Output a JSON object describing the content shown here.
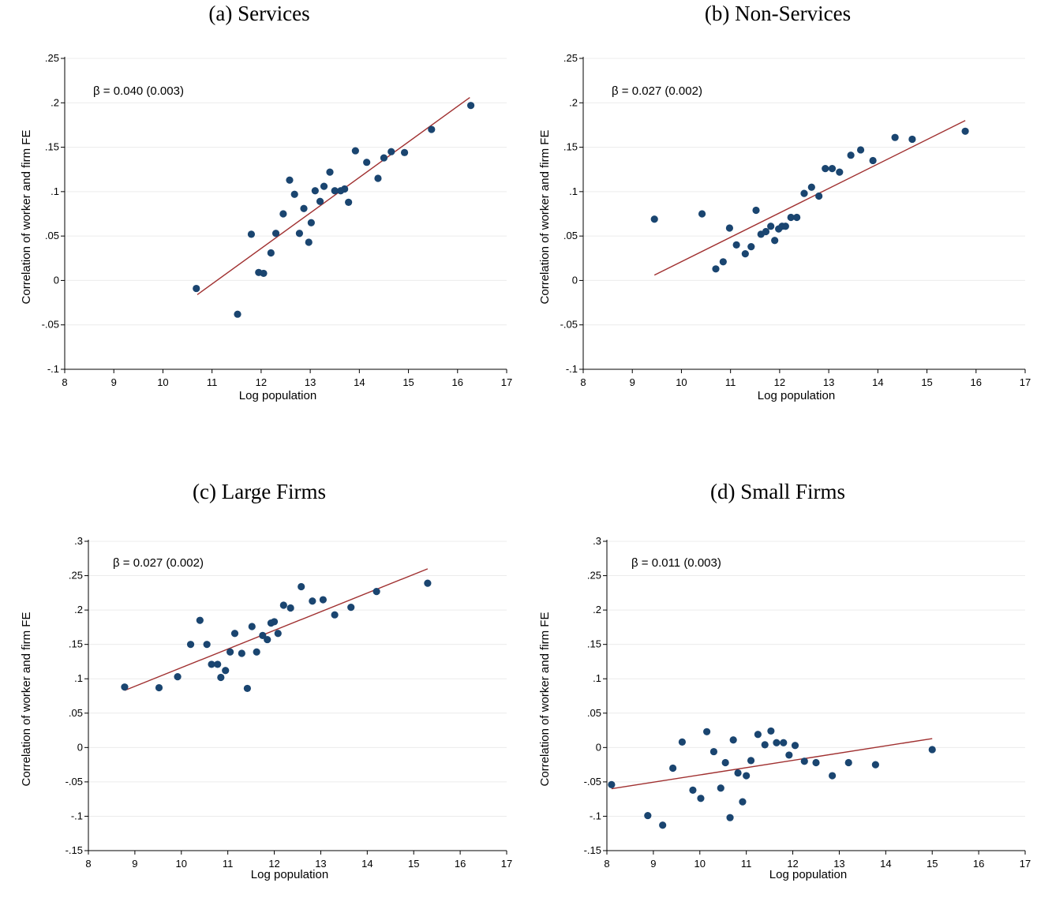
{
  "colors": {
    "points": "#1a4570",
    "fit_line": "#a03030",
    "grid": "#ececec"
  },
  "chart_data": [
    {
      "id": "a",
      "type": "scatter",
      "title": "(a) Services",
      "xlabel": "Log population",
      "ylabel": "Correlation of worker and firm FE",
      "annotation": "β =  0.040 (0.003)",
      "xlim": [
        8,
        17
      ],
      "ylim": [
        -0.1,
        0.25
      ],
      "xticks": [
        8,
        9,
        10,
        11,
        12,
        13,
        14,
        15,
        16,
        17
      ],
      "yticks": [
        -0.1,
        -0.05,
        0,
        0.05,
        0.1,
        0.15,
        0.2,
        0.25
      ],
      "ytick_labels": [
        "-.1",
        "-.05",
        "0",
        ".05",
        ".1",
        ".15",
        ".2",
        ".25"
      ],
      "grid": true,
      "fit_line": [
        [
          10.7,
          -0.016
        ],
        [
          16.25,
          0.206
        ]
      ],
      "points": [
        [
          10.68,
          -0.009
        ],
        [
          11.52,
          -0.038
        ],
        [
          11.8,
          0.052
        ],
        [
          11.95,
          0.009
        ],
        [
          12.05,
          0.008
        ],
        [
          12.2,
          0.031
        ],
        [
          12.3,
          0.053
        ],
        [
          12.45,
          0.075
        ],
        [
          12.58,
          0.113
        ],
        [
          12.68,
          0.097
        ],
        [
          12.78,
          0.053
        ],
        [
          12.87,
          0.081
        ],
        [
          12.97,
          0.043
        ],
        [
          13.02,
          0.065
        ],
        [
          13.1,
          0.101
        ],
        [
          13.2,
          0.089
        ],
        [
          13.28,
          0.106
        ],
        [
          13.4,
          0.122
        ],
        [
          13.5,
          0.101
        ],
        [
          13.62,
          0.101
        ],
        [
          13.7,
          0.103
        ],
        [
          13.78,
          0.088
        ],
        [
          13.92,
          0.146
        ],
        [
          14.15,
          0.133
        ],
        [
          14.38,
          0.115
        ],
        [
          14.5,
          0.138
        ],
        [
          14.65,
          0.145
        ],
        [
          14.92,
          0.144
        ],
        [
          15.47,
          0.17
        ],
        [
          16.27,
          0.197
        ]
      ]
    },
    {
      "id": "b",
      "type": "scatter",
      "title": "(b) Non-Services",
      "xlabel": "Log population",
      "ylabel": "Correlation of worker and firm FE",
      "annotation": "β =  0.027 (0.002)",
      "xlim": [
        8,
        17
      ],
      "ylim": [
        -0.1,
        0.25
      ],
      "xticks": [
        8,
        9,
        10,
        11,
        12,
        13,
        14,
        15,
        16,
        17
      ],
      "yticks": [
        -0.1,
        -0.05,
        0,
        0.05,
        0.1,
        0.15,
        0.2,
        0.25
      ],
      "ytick_labels": [
        "-.1",
        "-.05",
        "0",
        ".05",
        ".1",
        ".15",
        ".2",
        ".25"
      ],
      "grid": true,
      "fit_line": [
        [
          9.45,
          0.006
        ],
        [
          15.78,
          0.18
        ]
      ],
      "points": [
        [
          9.45,
          0.069
        ],
        [
          10.42,
          0.075
        ],
        [
          10.7,
          0.013
        ],
        [
          10.85,
          0.021
        ],
        [
          10.98,
          0.059
        ],
        [
          11.12,
          0.04
        ],
        [
          11.3,
          0.03
        ],
        [
          11.42,
          0.038
        ],
        [
          11.52,
          0.079
        ],
        [
          11.62,
          0.052
        ],
        [
          11.72,
          0.055
        ],
        [
          11.82,
          0.061
        ],
        [
          11.9,
          0.045
        ],
        [
          11.98,
          0.058
        ],
        [
          12.05,
          0.061
        ],
        [
          12.12,
          0.061
        ],
        [
          12.23,
          0.071
        ],
        [
          12.35,
          0.071
        ],
        [
          12.5,
          0.098
        ],
        [
          12.65,
          0.105
        ],
        [
          12.8,
          0.095
        ],
        [
          12.93,
          0.126
        ],
        [
          13.07,
          0.126
        ],
        [
          13.22,
          0.122
        ],
        [
          13.45,
          0.141
        ],
        [
          13.65,
          0.147
        ],
        [
          13.9,
          0.135
        ],
        [
          14.35,
          0.161
        ],
        [
          14.7,
          0.159
        ],
        [
          15.78,
          0.168
        ]
      ]
    },
    {
      "id": "c",
      "type": "scatter",
      "title": "(c) Large Firms",
      "xlabel": "Log population",
      "ylabel": "Correlation of worker and firm FE",
      "annotation": "β =  0.027 (0.002)",
      "xlim": [
        8,
        17
      ],
      "ylim": [
        -0.15,
        0.3
      ],
      "xticks": [
        8,
        9,
        10,
        11,
        12,
        13,
        14,
        15,
        16,
        17
      ],
      "yticks": [
        -0.15,
        -0.1,
        -0.05,
        0,
        0.05,
        0.1,
        0.15,
        0.2,
        0.25,
        0.3
      ],
      "ytick_labels": [
        "-.15",
        "-.1",
        "-.05",
        "0",
        ".05",
        ".1",
        ".15",
        ".2",
        ".25",
        ".3"
      ],
      "grid": true,
      "fit_line": [
        [
          8.78,
          0.083
        ],
        [
          15.3,
          0.26
        ]
      ],
      "points": [
        [
          8.78,
          0.088
        ],
        [
          9.52,
          0.087
        ],
        [
          9.92,
          0.103
        ],
        [
          10.2,
          0.15
        ],
        [
          10.4,
          0.185
        ],
        [
          10.55,
          0.15
        ],
        [
          10.65,
          0.121
        ],
        [
          10.78,
          0.121
        ],
        [
          10.85,
          0.102
        ],
        [
          10.95,
          0.112
        ],
        [
          11.05,
          0.139
        ],
        [
          11.15,
          0.166
        ],
        [
          11.3,
          0.137
        ],
        [
          11.42,
          0.086
        ],
        [
          11.52,
          0.176
        ],
        [
          11.62,
          0.139
        ],
        [
          11.75,
          0.163
        ],
        [
          11.85,
          0.157
        ],
        [
          11.93,
          0.181
        ],
        [
          12.0,
          0.183
        ],
        [
          12.08,
          0.166
        ],
        [
          12.2,
          0.207
        ],
        [
          12.35,
          0.203
        ],
        [
          12.58,
          0.234
        ],
        [
          12.82,
          0.213
        ],
        [
          13.05,
          0.215
        ],
        [
          13.3,
          0.193
        ],
        [
          13.65,
          0.204
        ],
        [
          14.2,
          0.227
        ],
        [
          15.3,
          0.239
        ]
      ]
    },
    {
      "id": "d",
      "type": "scatter",
      "title": "(d) Small Firms",
      "xlabel": "Log population",
      "ylabel": "Correlation of worker and firm FE",
      "annotation": "β =  0.011 (0.003)",
      "xlim": [
        8,
        17
      ],
      "ylim": [
        -0.15,
        0.3
      ],
      "xticks": [
        8,
        9,
        10,
        11,
        12,
        13,
        14,
        15,
        16,
        17
      ],
      "yticks": [
        -0.15,
        -0.1,
        -0.05,
        0,
        0.05,
        0.1,
        0.15,
        0.2,
        0.25,
        0.3
      ],
      "ytick_labels": [
        "-.15",
        "-.1",
        "-.05",
        "0",
        ".05",
        ".1",
        ".15",
        ".2",
        ".25",
        ".3"
      ],
      "grid": true,
      "fit_line": [
        [
          8.1,
          -0.06
        ],
        [
          15.0,
          0.013
        ]
      ],
      "points": [
        [
          8.1,
          -0.054
        ],
        [
          8.88,
          -0.099
        ],
        [
          9.2,
          -0.113
        ],
        [
          9.42,
          -0.03
        ],
        [
          9.62,
          0.008
        ],
        [
          9.85,
          -0.062
        ],
        [
          10.02,
          -0.074
        ],
        [
          10.15,
          0.023
        ],
        [
          10.3,
          -0.006
        ],
        [
          10.45,
          -0.059
        ],
        [
          10.55,
          -0.022
        ],
        [
          10.65,
          -0.102
        ],
        [
          10.72,
          0.011
        ],
        [
          10.82,
          -0.037
        ],
        [
          10.92,
          -0.079
        ],
        [
          11.0,
          -0.041
        ],
        [
          11.1,
          -0.019
        ],
        [
          11.25,
          0.019
        ],
        [
          11.4,
          0.004
        ],
        [
          11.53,
          0.024
        ],
        [
          11.65,
          0.007
        ],
        [
          11.8,
          0.007
        ],
        [
          11.92,
          -0.011
        ],
        [
          12.05,
          0.003
        ],
        [
          12.25,
          -0.02
        ],
        [
          12.5,
          -0.022
        ],
        [
          12.85,
          -0.041
        ],
        [
          13.2,
          -0.022
        ],
        [
          13.78,
          -0.025
        ],
        [
          15.0,
          -0.003
        ]
      ]
    }
  ]
}
